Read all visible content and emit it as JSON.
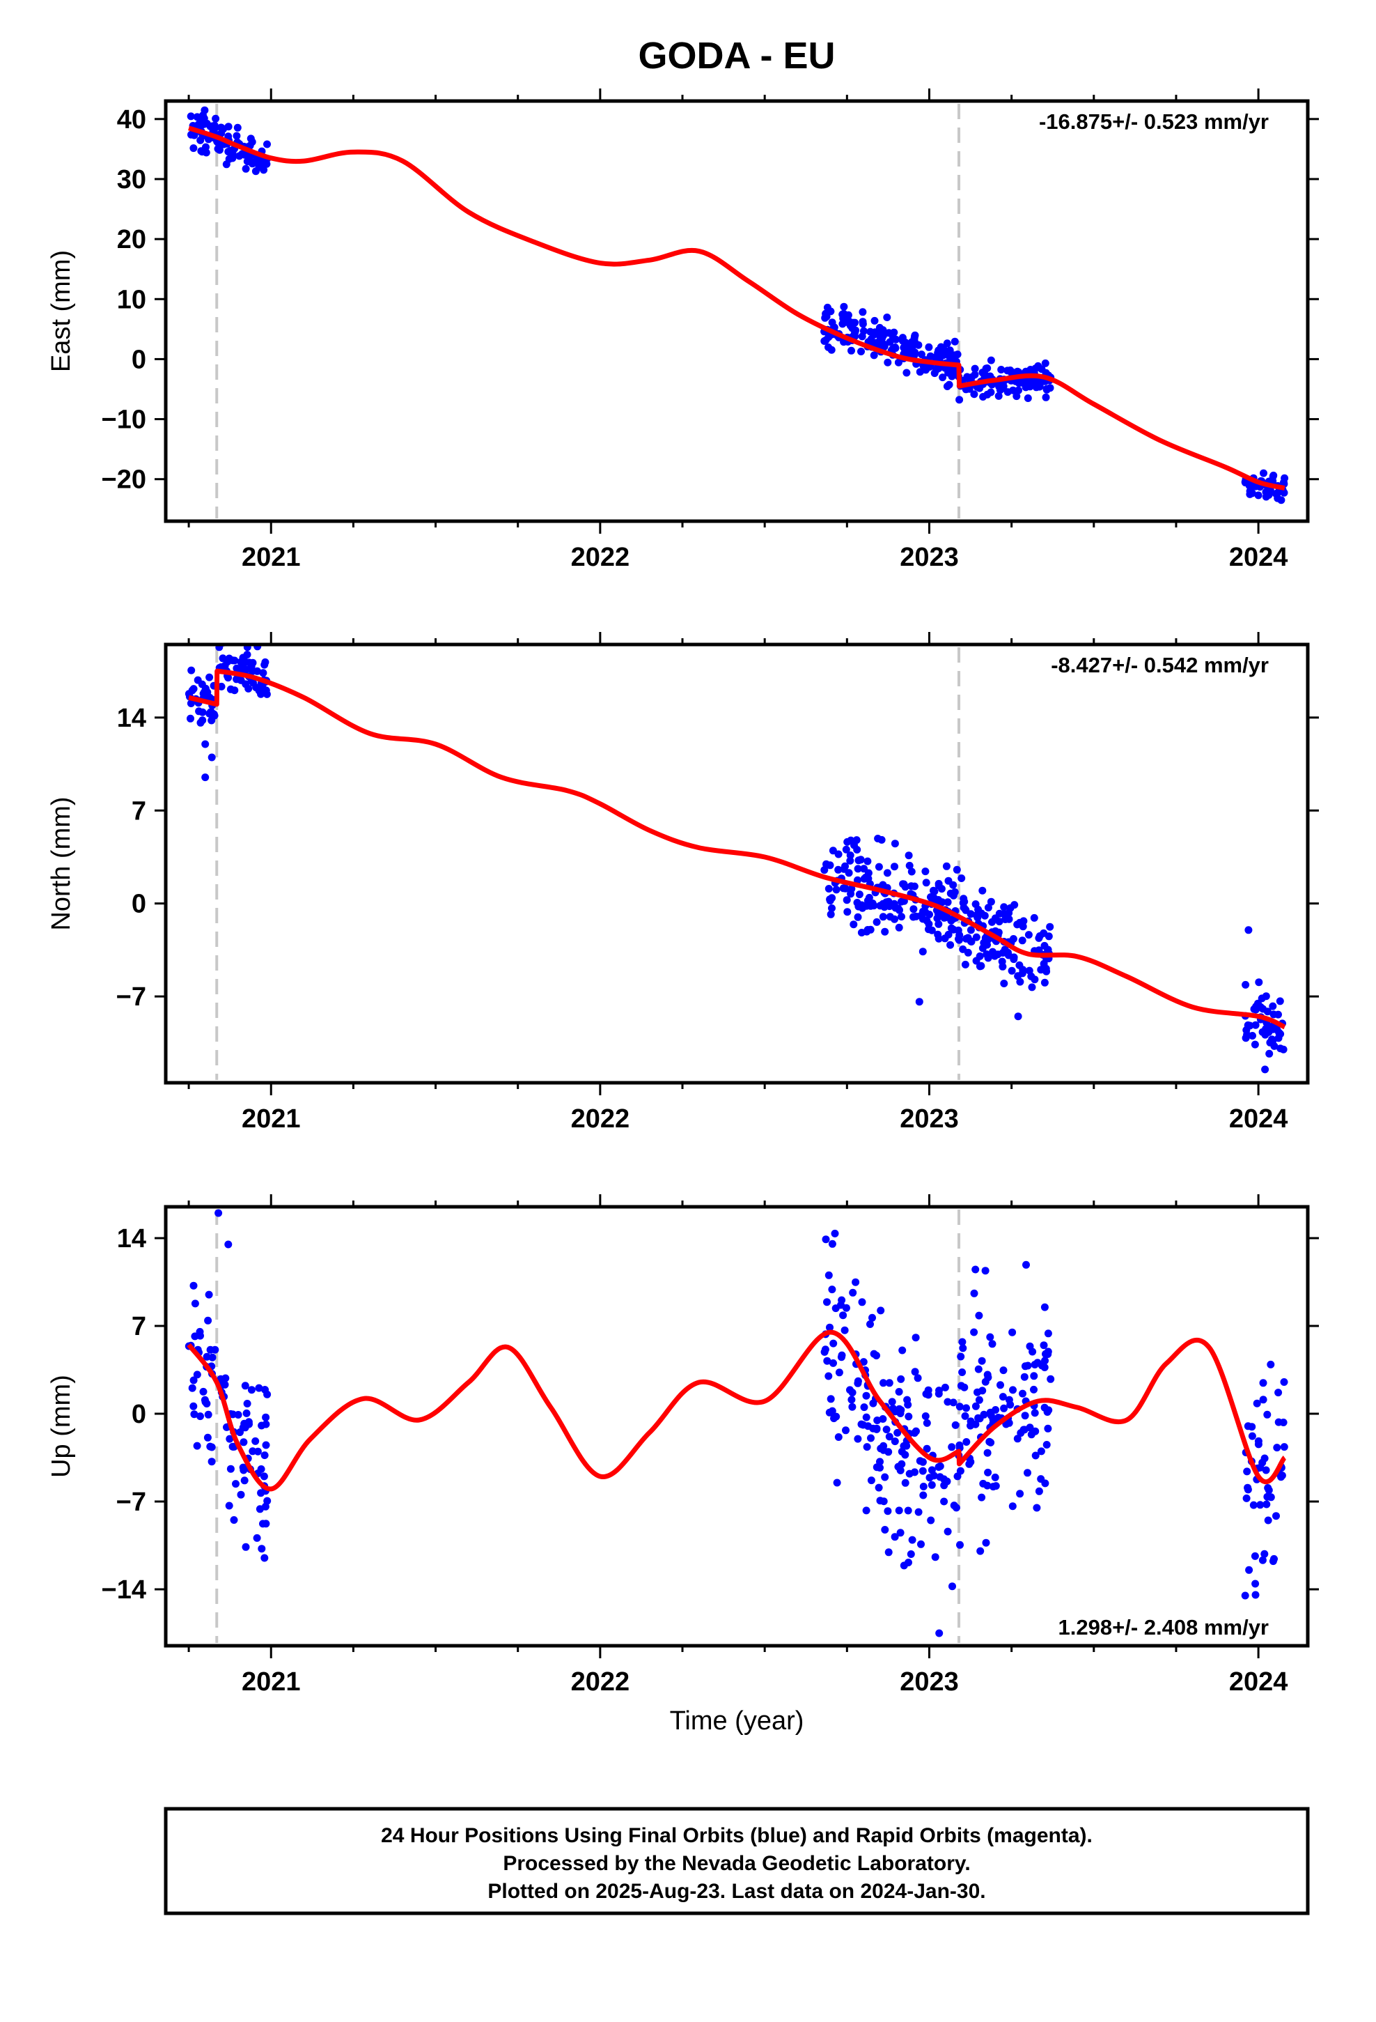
{
  "chart_data": {
    "type": "scatter",
    "title": "GODA - EU",
    "xlabel": "Time (year)",
    "xlim": [
      2020.68,
      2024.15
    ],
    "x_ticks": [
      2021,
      2022,
      2023,
      2024
    ],
    "x_tick_labels": [
      "2021",
      "2022",
      "2023",
      "2024"
    ],
    "breaks_x": [
      2020.835,
      2023.09
    ],
    "colors": {
      "data": "#0000ff",
      "model": "#ff0000",
      "break": "#c8c8c8",
      "frame": "#000000"
    },
    "panels": [
      {
        "name": "east",
        "ylabel": "East (mm)",
        "ylim": [
          -27,
          43
        ],
        "y_ticks": [
          40,
          30,
          20,
          10,
          0,
          -10,
          -20
        ],
        "y_tick_labels": [
          "40",
          "30",
          "20",
          "10",
          "0",
          "−10",
          "−20"
        ],
        "rate_text": "-16.875+/- 0.523 mm/yr",
        "rate_position": "top-right",
        "model_x": [
          2020.75,
          2020.835,
          2020.9,
          2021.0,
          2021.1,
          2021.25,
          2021.4,
          2021.6,
          2021.8,
          2022.0,
          2022.15,
          2022.3,
          2022.45,
          2022.6,
          2022.75,
          2022.9,
          2023.0,
          2023.09,
          2023.091,
          2023.2,
          2023.35,
          2023.5,
          2023.7,
          2023.9,
          2024.0,
          2024.08
        ],
        "model_y": [
          38.5,
          37.0,
          35.5,
          33.5,
          33.0,
          34.5,
          33.0,
          24.5,
          19.5,
          16.0,
          16.5,
          18.0,
          13.0,
          7.5,
          3.5,
          0.5,
          -0.5,
          -1.0,
          -4.5,
          -3.5,
          -3.0,
          -7.5,
          -13.5,
          -18.0,
          -20.5,
          -21.5
        ],
        "data_segments": [
          {
            "x": [
              2020.75,
              2020.9
            ],
            "center": [
              38.0,
              36.0
            ],
            "spread": 1.8
          },
          {
            "x": [
              2020.9,
              2020.99
            ],
            "center": [
              35.0,
              33.0
            ],
            "spread": 1.2
          },
          {
            "x": [
              2022.68,
              2023.09
            ],
            "center": [
              6.0,
              -1.0
            ],
            "spread": 1.8
          },
          {
            "x": [
              2023.09,
              2023.37
            ],
            "center": [
              -4.0,
              -3.0
            ],
            "spread": 1.3
          },
          {
            "x": [
              2023.96,
              2024.08
            ],
            "center": [
              -21.0,
              -21.5
            ],
            "spread": 1.0
          }
        ]
      },
      {
        "name": "north",
        "ylabel": "North (mm)",
        "ylim": [
          -13.5,
          19.5
        ],
        "y_ticks": [
          14,
          7,
          0,
          -7
        ],
        "y_tick_labels": [
          "14",
          "7",
          "0",
          "−7"
        ],
        "rate_text": "-8.427+/- 0.542 mm/yr",
        "rate_position": "top-right",
        "model_x": [
          2020.75,
          2020.835,
          2020.836,
          2020.95,
          2021.1,
          2021.3,
          2021.5,
          2021.7,
          2021.9,
          2022.0,
          2022.15,
          2022.3,
          2022.5,
          2022.68,
          2022.85,
          2023.0,
          2023.09,
          2023.2,
          2023.3,
          2023.45,
          2023.6,
          2023.8,
          2024.0,
          2024.08
        ],
        "model_y": [
          15.5,
          15.0,
          17.5,
          17.0,
          15.5,
          12.8,
          12.0,
          9.5,
          8.5,
          7.5,
          5.5,
          4.2,
          3.5,
          2.0,
          1.0,
          0.0,
          -1.0,
          -2.5,
          -3.8,
          -4.0,
          -5.5,
          -7.8,
          -8.5,
          -9.3
        ],
        "data_segments": [
          {
            "x": [
              2020.75,
              2020.83
            ],
            "center": [
              15.5,
              15.0
            ],
            "spread": 1.0
          },
          {
            "x": [
              2020.84,
              2020.99
            ],
            "center": [
              17.8,
              16.8
            ],
            "spread": 1.0
          },
          {
            "x": [
              2022.68,
              2023.09
            ],
            "center": [
              1.8,
              -0.5
            ],
            "spread": 1.6
          },
          {
            "x": [
              2023.09,
              2023.37
            ],
            "center": [
              -1.5,
              -4.0
            ],
            "spread": 1.4
          },
          {
            "x": [
              2023.96,
              2024.08
            ],
            "center": [
              -8.3,
              -9.3
            ],
            "spread": 1.2
          }
        ],
        "outliers": [
          [
            2020.8,
            9.5
          ],
          [
            2020.8,
            12.0
          ],
          [
            2020.82,
            11.0
          ],
          [
            2022.97,
            -7.4
          ],
          [
            2023.27,
            -8.5
          ],
          [
            2023.97,
            -2.0
          ],
          [
            2024.02,
            -12.5
          ]
        ]
      },
      {
        "name": "up",
        "ylabel": "Up (mm)",
        "ylim": [
          -18.5,
          16.5
        ],
        "y_ticks": [
          14,
          7,
          0,
          -7,
          -14
        ],
        "y_tick_labels": [
          "14",
          "7",
          "0",
          "−7",
          "−14"
        ],
        "rate_text": "1.298+/- 2.408 mm/yr",
        "rate_position": "bottom-right",
        "model_x": [
          2020.75,
          2020.835,
          2020.9,
          2021.0,
          2021.12,
          2021.28,
          2021.45,
          2021.6,
          2021.72,
          2021.85,
          2022.0,
          2022.15,
          2022.3,
          2022.5,
          2022.7,
          2022.85,
          2023.0,
          2023.09,
          2023.091,
          2023.2,
          2023.33,
          2023.45,
          2023.6,
          2023.72,
          2023.85,
          2024.0,
          2024.08
        ],
        "model_y": [
          5.5,
          2.5,
          -2.5,
          -6.0,
          -2.0,
          1.2,
          -0.5,
          2.5,
          5.3,
          0.5,
          -5.0,
          -1.5,
          2.5,
          1.0,
          6.5,
          1.0,
          -3.5,
          -3.0,
          -4.0,
          -1.0,
          1.0,
          0.5,
          -0.5,
          4.0,
          5.3,
          -5.0,
          -3.5
        ],
        "data_segments": [
          {
            "x": [
              2020.75,
              2020.83
            ],
            "center": [
              5.0,
              2.0
            ],
            "spread": 4.0
          },
          {
            "x": [
              2020.84,
              2020.99
            ],
            "center": [
              0.0,
              -4.5
            ],
            "spread": 4.0
          },
          {
            "x": [
              2022.68,
              2022.85
            ],
            "center": [
              7.0,
              0.0
            ],
            "spread": 4.5
          },
          {
            "x": [
              2022.85,
              2023.09
            ],
            "center": [
              -2.0,
              -5.0
            ],
            "spread": 4.5
          },
          {
            "x": [
              2023.09,
              2023.37
            ],
            "center": [
              -1.0,
              1.5
            ],
            "spread": 4.0
          },
          {
            "x": [
              2023.96,
              2024.08
            ],
            "center": [
              -5.0,
              -4.0
            ],
            "spread": 4.0
          }
        ],
        "outliers": [
          [
            2020.84,
            16.0
          ],
          [
            2020.87,
            13.5
          ],
          [
            2020.98,
            -11.5
          ],
          [
            2022.72,
            -5.5
          ],
          [
            2023.03,
            -17.5
          ],
          [
            2023.14,
            11.5
          ],
          [
            2023.96,
            -14.5
          ]
        ]
      }
    ]
  },
  "footer": {
    "line1": "24 Hour Positions Using Final Orbits (blue) and Rapid Orbits (magenta).",
    "line2": "Processed by the Nevada Geodetic Laboratory.",
    "line3": "Plotted on 2025-Aug-23. Last data on 2024-Jan-30."
  }
}
